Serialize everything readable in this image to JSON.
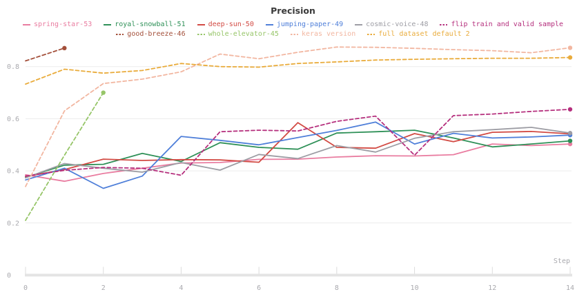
{
  "chart": {
    "title": "Precision",
    "background": "#ffffff",
    "grid_color": "#ebebeb",
    "axis_band_color": "#e4e4e4",
    "tick_text_color": "#a9a9ae",
    "title_color": "#3a3a3a"
  },
  "chart_data": {
    "type": "line",
    "title": "Precision",
    "xlabel": "Step",
    "ylabel": "",
    "x_range": [
      0,
      14
    ],
    "y_range": [
      0,
      0.9
    ],
    "x_ticks": [
      0,
      2,
      4,
      6,
      8,
      10,
      12,
      14
    ],
    "y_ticks": [
      0.2,
      0.4,
      0.6,
      0.8
    ],
    "y_zero_label": "0",
    "grid": true,
    "legend_position": "top",
    "legend_rows": [
      [
        0,
        1,
        2,
        3,
        4,
        5
      ],
      [
        6,
        7,
        8,
        9
      ]
    ],
    "series": [
      {
        "name": "spring-star-53",
        "color": "#e97ca0",
        "dashed": false,
        "x": [
          0,
          1,
          2,
          3,
          4,
          5,
          6,
          7,
          8,
          9,
          10,
          11,
          12,
          13,
          14
        ],
        "values": [
          0.385,
          0.36,
          0.39,
          0.41,
          0.43,
          0.432,
          0.444,
          0.445,
          0.453,
          0.458,
          0.457,
          0.462,
          0.503,
          0.497,
          0.503
        ]
      },
      {
        "name": "royal-snowball-51",
        "color": "#2e9057",
        "dashed": false,
        "x": [
          0,
          1,
          2,
          3,
          4,
          5,
          6,
          7,
          8,
          9,
          10,
          11,
          12,
          13,
          14
        ],
        "values": [
          0.375,
          0.422,
          0.425,
          0.467,
          0.436,
          0.508,
          0.49,
          0.483,
          0.545,
          0.55,
          0.556,
          0.526,
          0.492,
          0.503,
          0.515
        ]
      },
      {
        "name": "deep-sun-50",
        "color": "#d24a43",
        "dashed": false,
        "x": [
          0,
          1,
          2,
          3,
          4,
          5,
          6,
          7,
          8,
          9,
          10,
          11,
          12,
          13,
          14
        ],
        "values": [
          0.378,
          0.405,
          0.445,
          0.44,
          0.443,
          0.442,
          0.433,
          0.585,
          0.49,
          0.487,
          0.543,
          0.512,
          0.548,
          0.551,
          0.542
        ]
      },
      {
        "name": "jumping-paper-49",
        "color": "#4f7fd9",
        "dashed": false,
        "x": [
          0,
          1,
          2,
          3,
          4,
          5,
          6,
          7,
          8,
          9,
          10,
          11,
          12,
          13,
          14
        ],
        "values": [
          0.365,
          0.41,
          0.333,
          0.38,
          0.532,
          0.517,
          0.5,
          0.528,
          0.555,
          0.587,
          0.503,
          0.544,
          0.526,
          0.53,
          0.537
        ]
      },
      {
        "name": "cosmic-voice-48",
        "color": "#9d9da4",
        "dashed": false,
        "x": [
          0,
          1,
          2,
          3,
          4,
          5,
          6,
          7,
          8,
          9,
          10,
          11,
          12,
          13,
          14
        ],
        "values": [
          0.373,
          0.428,
          0.41,
          0.395,
          0.432,
          0.403,
          0.463,
          0.447,
          0.497,
          0.472,
          0.525,
          0.55,
          0.558,
          0.567,
          0.545
        ]
      },
      {
        "name": "flip train and valid sample",
        "color": "#b52f7d",
        "dashed": true,
        "x": [
          0,
          1,
          2,
          3,
          4,
          5,
          6,
          7,
          8,
          9,
          10,
          11,
          12,
          13,
          14
        ],
        "values": [
          0.38,
          0.402,
          0.413,
          0.41,
          0.383,
          0.55,
          0.556,
          0.553,
          0.59,
          0.61,
          0.46,
          0.612,
          0.618,
          0.628,
          0.636
        ]
      },
      {
        "name": "good-breeze-46",
        "color": "#a34f3a",
        "dashed": true,
        "x": [
          0,
          1
        ],
        "values": [
          0.822,
          0.871
        ]
      },
      {
        "name": "whole-elevator-45",
        "color": "#96c568",
        "dashed": true,
        "x": [
          0,
          1,
          2
        ],
        "values": [
          0.21,
          0.46,
          0.7
        ]
      },
      {
        "name": "keras version",
        "color": "#f2b6a0",
        "dashed": true,
        "x": [
          0,
          1,
          2,
          3,
          4,
          5,
          6,
          7,
          8,
          9,
          10,
          11,
          12,
          13,
          14
        ],
        "values": [
          0.34,
          0.63,
          0.735,
          0.752,
          0.78,
          0.848,
          0.83,
          0.855,
          0.875,
          0.874,
          0.87,
          0.865,
          0.861,
          0.853,
          0.872
        ]
      },
      {
        "name": "full dataset default 2",
        "color": "#e9ab3a",
        "dashed": true,
        "x": [
          0,
          1,
          2,
          3,
          4,
          5,
          6,
          7,
          8,
          9,
          10,
          11,
          12,
          13,
          14
        ],
        "values": [
          0.733,
          0.79,
          0.775,
          0.785,
          0.812,
          0.8,
          0.798,
          0.812,
          0.818,
          0.825,
          0.828,
          0.83,
          0.832,
          0.832,
          0.835
        ]
      }
    ]
  }
}
